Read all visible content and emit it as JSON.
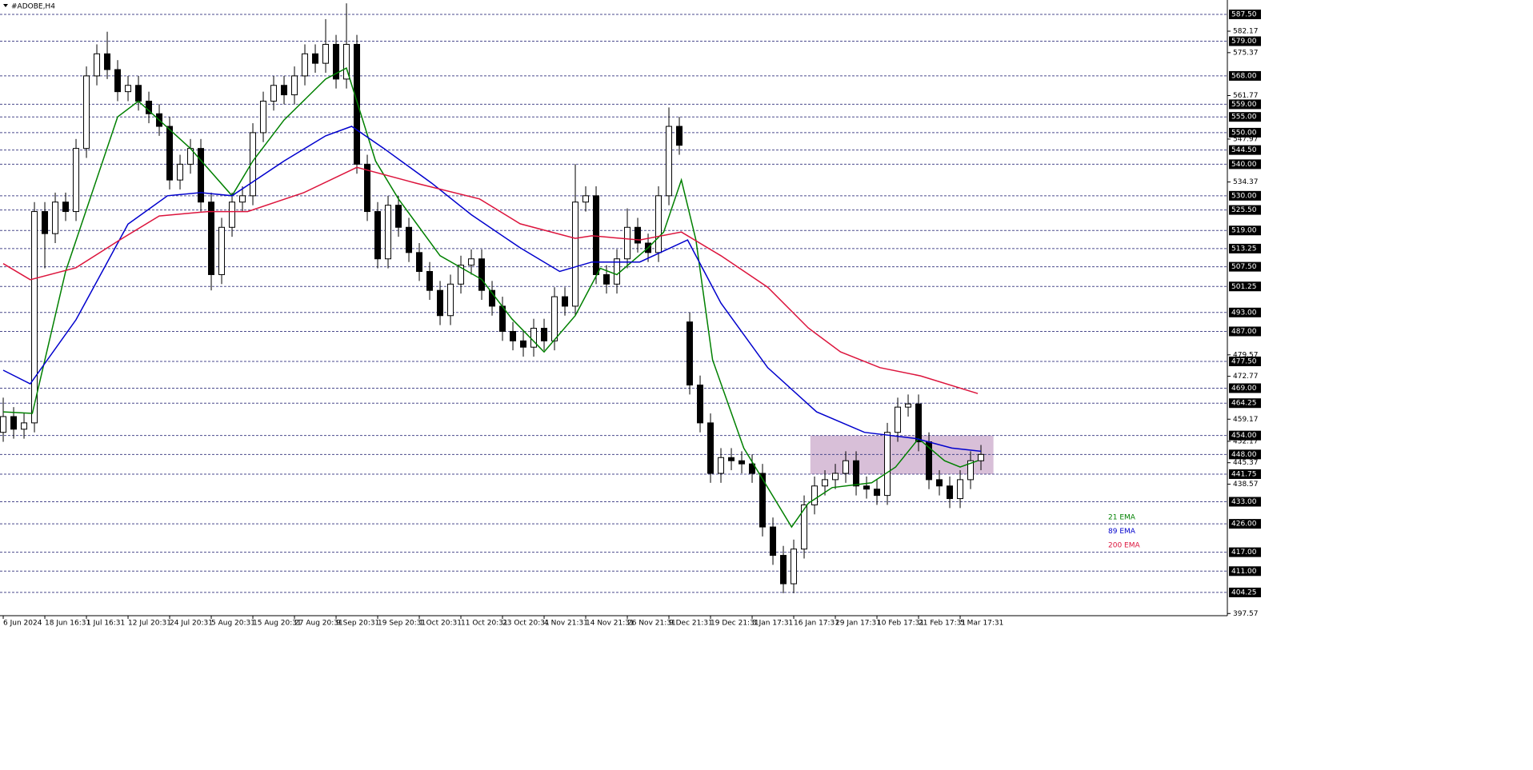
{
  "chart_data": {
    "type": "candlestick",
    "title": "#ADOBE,H4",
    "xlim": [
      -0.31,
      117.69
    ],
    "ylim": [
      396.88,
      592.06
    ],
    "xticks": [
      {
        "value": 0,
        "label": "6 Jun 2024"
      },
      {
        "value": 4,
        "label": "18 Jun 16:31"
      },
      {
        "value": 8,
        "label": "1 Jul 16:31"
      },
      {
        "value": 12,
        "label": "12 Jul 20:31"
      },
      {
        "value": 16,
        "label": "24 Jul 20:31"
      },
      {
        "value": 20,
        "label": "5 Aug 20:31"
      },
      {
        "value": 24,
        "label": "15 Aug 20:31"
      },
      {
        "value": 28,
        "label": "27 Aug 20:31"
      },
      {
        "value": 32,
        "label": "9 Sep 20:31"
      },
      {
        "value": 36,
        "label": "19 Sep 20:31"
      },
      {
        "value": 40,
        "label": "1 Oct 20:31"
      },
      {
        "value": 44,
        "label": "11 Oct 20:31"
      },
      {
        "value": 48,
        "label": "23 Oct 20:31"
      },
      {
        "value": 52,
        "label": "4 Nov 21:31"
      },
      {
        "value": 56,
        "label": "14 Nov 21:31"
      },
      {
        "value": 60,
        "label": "26 Nov 21:31"
      },
      {
        "value": 64,
        "label": "9 Dec 21:31"
      },
      {
        "value": 68,
        "label": "19 Dec 21:31"
      },
      {
        "value": 72,
        "label": "3 Jan 17:31"
      },
      {
        "value": 76,
        "label": "16 Jan 17:31"
      },
      {
        "value": 80,
        "label": "29 Jan 17:31"
      },
      {
        "value": 84,
        "label": "10 Feb 17:31"
      },
      {
        "value": 88,
        "label": "21 Feb 17:31"
      },
      {
        "value": 92,
        "label": "5 Mar 17:31"
      }
    ],
    "yticks": [
      582.17,
      575.37,
      561.77,
      547.97,
      534.37,
      479.57,
      472.77,
      459.17,
      452.17,
      445.37,
      438.57,
      397.57
    ],
    "levels": [
      {
        "value": 587.5,
        "label": "587.50"
      },
      {
        "value": 579,
        "label": "579.00"
      },
      {
        "value": 568,
        "label": "568.00"
      },
      {
        "value": 559,
        "label": "559.00"
      },
      {
        "value": 555,
        "label": "555.00"
      },
      {
        "value": 550,
        "label": "550.00"
      },
      {
        "value": 544.5,
        "label": "544.50"
      },
      {
        "value": 540,
        "label": "540.00"
      },
      {
        "value": 530,
        "label": "530.00"
      },
      {
        "value": 525.5,
        "label": "525.50"
      },
      {
        "value": 519,
        "label": "519.00"
      },
      {
        "value": 513.25,
        "label": "513.25"
      },
      {
        "value": 507.5,
        "label": "507.50"
      },
      {
        "value": 501.25,
        "label": "501.25"
      },
      {
        "value": 493,
        "label": "493.00"
      },
      {
        "value": 487,
        "label": "487.00"
      },
      {
        "value": 477.5,
        "label": "477.50"
      },
      {
        "value": 469,
        "label": "469.00"
      },
      {
        "value": 464.25,
        "label": "464.25"
      },
      {
        "value": 454,
        "label": "454.00"
      },
      {
        "value": 448,
        "label": "448.00"
      },
      {
        "value": 441.75,
        "label": "441.75"
      },
      {
        "value": 433,
        "label": "433.00"
      },
      {
        "value": 426,
        "label": "426.00"
      },
      {
        "value": 417,
        "label": "417.00"
      },
      {
        "value": 411,
        "label": "411.00"
      },
      {
        "value": 404.25,
        "label": "404.25"
      }
    ],
    "level_color": "#4a4a8c",
    "zone": {
      "x": [
        77.6,
        95.2
      ],
      "y": [
        441.75,
        454
      ],
      "color": "#d8bfd8"
    },
    "candles": {
      "open": [
        455,
        460,
        456,
        458,
        525,
        518,
        528,
        525,
        545,
        568,
        575,
        570,
        563,
        565,
        560,
        556,
        552,
        535,
        540,
        545,
        528,
        505,
        520,
        528,
        530,
        550,
        560,
        565,
        562,
        568,
        575,
        572,
        578,
        567,
        578,
        540,
        525,
        510,
        527,
        520,
        512,
        506,
        500,
        492,
        502,
        508,
        510,
        500,
        495,
        487,
        484,
        482,
        488,
        484,
        498,
        495,
        528,
        530,
        505,
        502,
        510,
        520,
        515,
        512,
        530,
        552,
        490,
        470,
        458,
        442,
        447,
        446,
        445,
        442,
        425,
        416,
        407,
        418,
        432,
        438,
        440,
        442,
        446,
        438,
        437,
        435,
        455,
        463,
        464,
        452,
        440,
        438,
        434,
        440,
        446
      ],
      "high": [
        466,
        463,
        461,
        528,
        528,
        531,
        531,
        548,
        571,
        578,
        582,
        573,
        568,
        568,
        563,
        559,
        555,
        543,
        548,
        548,
        531,
        523,
        531,
        533,
        553,
        563,
        568,
        568,
        571,
        578,
        578,
        586,
        581,
        591,
        581,
        543,
        528,
        530,
        530,
        523,
        515,
        509,
        503,
        505,
        511,
        513,
        513,
        503,
        498,
        490,
        487,
        491,
        491,
        501,
        501,
        540,
        533,
        533,
        508,
        513,
        526,
        523,
        518,
        533,
        558,
        555,
        493,
        473,
        461,
        450,
        450,
        449,
        448,
        445,
        428,
        419,
        421,
        435,
        441,
        443,
        445,
        449,
        449,
        441,
        440,
        458,
        466,
        467,
        467,
        455,
        443,
        441,
        443,
        449,
        451
      ],
      "low": [
        452,
        453,
        453,
        455,
        507,
        515,
        522,
        522,
        542,
        565,
        567,
        560,
        560,
        557,
        553,
        549,
        532,
        532,
        537,
        525,
        500,
        502,
        517,
        525,
        527,
        547,
        557,
        559,
        559,
        565,
        569,
        569,
        564,
        564,
        537,
        522,
        507,
        507,
        517,
        509,
        503,
        497,
        489,
        489,
        499,
        505,
        497,
        492,
        484,
        481,
        479,
        479,
        481,
        481,
        492,
        492,
        525,
        502,
        499,
        499,
        507,
        512,
        509,
        509,
        527,
        543,
        467,
        455,
        439,
        439,
        443,
        442,
        439,
        422,
        413,
        404,
        404,
        415,
        429,
        435,
        437,
        439,
        435,
        434,
        432,
        432,
        452,
        460,
        449,
        437,
        435,
        431,
        431,
        437,
        443
      ],
      "close": [
        460,
        456,
        458,
        525,
        518,
        528,
        525,
        545,
        568,
        575,
        570,
        563,
        565,
        560,
        556,
        552,
        535,
        540,
        545,
        528,
        505,
        520,
        528,
        530,
        550,
        560,
        565,
        562,
        568,
        575,
        572,
        578,
        567,
        578,
        540,
        525,
        510,
        527,
        520,
        512,
        506,
        500,
        492,
        502,
        508,
        510,
        500,
        495,
        487,
        484,
        482,
        488,
        484,
        498,
        495,
        528,
        530,
        505,
        502,
        510,
        520,
        515,
        512,
        530,
        552,
        546,
        470,
        458,
        442,
        447,
        446,
        445,
        442,
        425,
        416,
        407,
        418,
        432,
        438,
        440,
        442,
        446,
        438,
        437,
        435,
        455,
        463,
        464,
        452,
        440,
        438,
        434,
        440,
        446,
        448
      ],
      "up_color": "#ffffff",
      "down_color": "#000000"
    },
    "series": [
      {
        "name": "21 EMA",
        "color": "#008000",
        "x": [
          0,
          2.8,
          6,
          11,
          13,
          18,
          22,
          24,
          27,
          31,
          33,
          35.8,
          38,
          42,
          46,
          48.9,
          52,
          55,
          57.4,
          59,
          62,
          63.5,
          65.2,
          66.6,
          68.2,
          71.2,
          75.8,
          77.4,
          79.7,
          83.5,
          85.8,
          88,
          90.5,
          92,
          93.7
        ],
        "values": [
          461.5,
          461,
          506,
          555,
          560,
          545,
          530,
          541,
          554,
          567,
          570.5,
          541,
          529,
          511,
          503.5,
          491,
          480.5,
          492,
          507,
          505,
          513.5,
          518.5,
          535,
          516,
          478,
          450,
          425,
          432.5,
          437.5,
          439,
          444,
          453,
          446,
          444,
          446
        ]
      },
      {
        "name": "89 EMA",
        "color": "#0000cd",
        "x": [
          0,
          2.6,
          7,
          12,
          15.8,
          19,
          22,
          27,
          31,
          33.5,
          36.6,
          41.2,
          45,
          49.7,
          53.5,
          56.6,
          61.2,
          65.8,
          69,
          73.5,
          78.2,
          82.8,
          87.8,
          91.2,
          94
        ],
        "values": [
          474.7,
          470.4,
          490.7,
          521,
          530,
          531,
          530,
          541,
          549,
          552,
          545,
          534,
          524,
          513.5,
          506,
          509,
          509,
          516,
          496,
          475.5,
          461.5,
          455,
          453,
          450,
          449
        ]
      },
      {
        "name": "200 EMA",
        "color": "#dc143c",
        "x": [
          0,
          2.6,
          7,
          11.2,
          15,
          19.7,
          23.5,
          28.9,
          34,
          39.7,
          45.8,
          49.7,
          55,
          56.6,
          61.2,
          65.2,
          69,
          73.5,
          77.4,
          80.5,
          84.3,
          88.2,
          93.7
        ],
        "values": [
          508.5,
          503.4,
          507.2,
          516,
          523.6,
          525,
          525,
          531,
          539,
          534,
          529,
          521.1,
          516.5,
          517.3,
          516,
          518.5,
          511,
          501,
          488.1,
          480.5,
          475.5,
          472.9,
          467.3
        ]
      }
    ]
  }
}
